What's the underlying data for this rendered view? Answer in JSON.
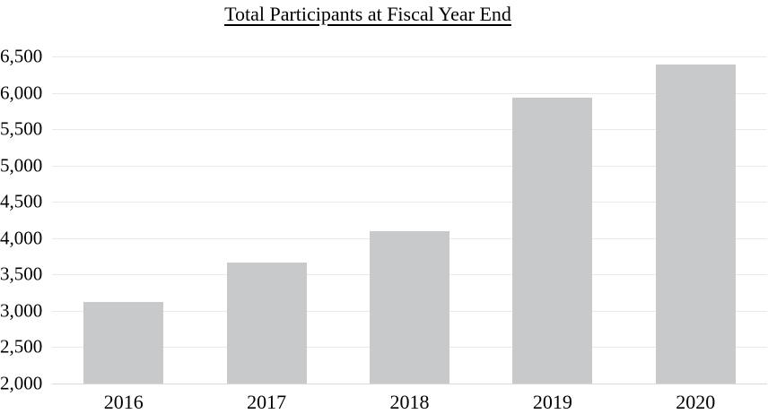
{
  "chart_data": {
    "type": "bar",
    "title": "Total Participants at Fiscal Year End",
    "categories": [
      "2016",
      "2017",
      "2018",
      "2019",
      "2020"
    ],
    "values": [
      3125,
      3665,
      4100,
      5935,
      6390
    ],
    "xlabel": "",
    "ylabel": "",
    "ylim": [
      2000,
      6500
    ],
    "ytick_step": 500,
    "ytick_labels": [
      "2,000",
      "2,500",
      "3,000",
      "3,500",
      "4,000",
      "4,500",
      "5,000",
      "5,500",
      "6,000",
      "6,500"
    ],
    "grid": true,
    "legend": false,
    "legend_position": "none"
  },
  "colors": {
    "bar": "#c8c9cb",
    "gridline": "#e9e9e9",
    "axis_line": "#d8d8d8",
    "text": "#000000",
    "background": "#ffffff"
  }
}
